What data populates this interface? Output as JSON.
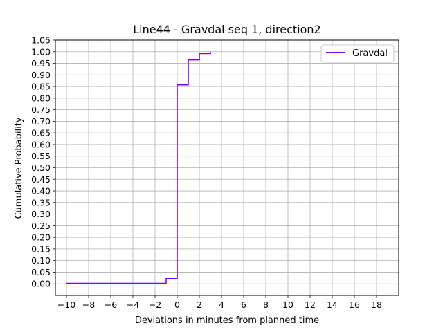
{
  "chart_data": {
    "type": "line",
    "title": "Line44 - Gravdal seq 1, direction2",
    "xlabel": "Deviations in minutes from planned time",
    "ylabel": "Cumulative Probability",
    "xlim": [
      -11,
      20
    ],
    "ylim": [
      -0.05,
      1.05
    ],
    "x_ticks": [
      -10,
      -8,
      -6,
      -4,
      -2,
      0,
      2,
      4,
      6,
      8,
      10,
      12,
      14,
      16,
      18
    ],
    "y_ticks": [
      0.0,
      0.05,
      0.1,
      0.15,
      0.2,
      0.25,
      0.3,
      0.35,
      0.4,
      0.45,
      0.5,
      0.55,
      0.6,
      0.65,
      0.7,
      0.75,
      0.8,
      0.85,
      0.9,
      0.95,
      1.0,
      1.05
    ],
    "x_tick_labels": [
      "−10",
      "−8",
      "−6",
      "−4",
      "−2",
      "0",
      "2",
      "4",
      "6",
      "8",
      "10",
      "12",
      "14",
      "16",
      "18"
    ],
    "y_tick_labels": [
      "0.00",
      "0.05",
      "0.10",
      "0.15",
      "0.20",
      "0.25",
      "0.30",
      "0.35",
      "0.40",
      "0.45",
      "0.50",
      "0.55",
      "0.60",
      "0.65",
      "0.70",
      "0.75",
      "0.80",
      "0.85",
      "0.90",
      "0.95",
      "1.00",
      "1.05"
    ],
    "grid": true,
    "legend_position": "top-right",
    "series": [
      {
        "name": "Gravdal",
        "color": "#7f00ff",
        "step": "post",
        "x": [
          -10,
          -1,
          0,
          1,
          2,
          3
        ],
        "y": [
          0.002,
          0.022,
          0.857,
          0.965,
          0.992,
          1.0
        ]
      }
    ]
  }
}
